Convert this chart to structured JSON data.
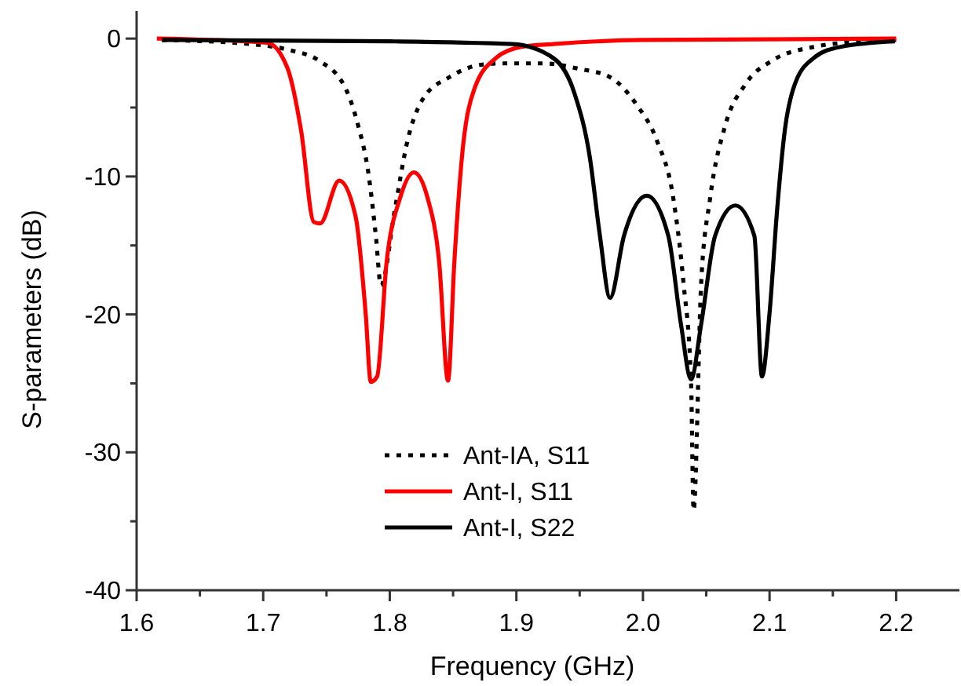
{
  "chart_data": {
    "type": "line",
    "xlabel": "Frequency (GHz)",
    "ylabel": "S-parameters (dB)",
    "xlim": [
      1.6,
      2.25
    ],
    "ylim": [
      -40,
      2
    ],
    "xticks": [
      1.6,
      {
        "value": 1.65,
        "label": null
      },
      1.7,
      {
        "value": 1.75,
        "label": null
      },
      1.8,
      {
        "value": 1.85,
        "label": null
      },
      1.9,
      {
        "value": 1.95,
        "label": null
      },
      {
        "value": 2,
        "label": "2.0"
      },
      {
        "value": 2.05,
        "label": null
      },
      2.1,
      {
        "value": 2.15,
        "label": null
      },
      2.2
    ],
    "yticks": [
      -40,
      {
        "value": -35,
        "label": null
      },
      -30,
      {
        "value": -25,
        "label": null
      },
      -20,
      {
        "value": -15,
        "label": null
      },
      -10,
      {
        "value": -5,
        "label": null
      },
      0
    ],
    "grid": false,
    "legend": "bottom",
    "marker": "none",
    "series": [
      {
        "name": "Ant-IA, S11",
        "color": "#000000",
        "line_style": "dotted",
        "x": [
          1.62,
          1.69,
          1.719,
          1.744,
          1.765,
          1.775,
          1.783,
          1.789,
          1.793,
          1.804,
          1.814,
          1.826,
          1.847,
          1.872,
          1.888,
          1.921,
          1.95,
          1.974,
          1.995,
          2.011,
          2.024,
          2.032,
          2.038,
          2.04,
          2.046,
          2.053,
          2.065,
          2.081,
          2.102,
          2.135,
          2.176,
          2.2
        ],
        "values": [
          -0.1,
          -0.4,
          -0.8,
          -1.6,
          -3.6,
          -6.3,
          -9.7,
          -14.3,
          -17.9,
          -12.4,
          -7.4,
          -4.4,
          -2.8,
          -1.9,
          -1.8,
          -1.8,
          -2.2,
          -2.8,
          -4.8,
          -7.4,
          -11.6,
          -17.7,
          -24.9,
          -34.2,
          -17.7,
          -11.6,
          -6.3,
          -3.3,
          -1.6,
          -0.6,
          -0.2,
          -0.1
        ]
      },
      {
        "name": "Ant-I, S11",
        "color": "#ff0000",
        "line_style": "solid",
        "x": [
          1.616,
          1.703,
          1.719,
          1.73,
          1.74,
          1.745,
          1.76,
          1.773,
          1.781,
          1.785,
          1.79,
          1.7975,
          1.808,
          1.819,
          1.83,
          1.839,
          1.846,
          1.851,
          1.857,
          1.867,
          1.884,
          1.904,
          1.929,
          2.0,
          2.2
        ],
        "values": [
          0,
          -0.3,
          -2.1,
          -6.7,
          -13.3,
          -13.4,
          -10.3,
          -12.9,
          -20,
          -24.9,
          -24.5,
          -16.2,
          -11.6,
          -9.7,
          -11.6,
          -16.2,
          -24.8,
          -16.2,
          -8.6,
          -3.6,
          -1.4,
          -0.6,
          -0.4,
          -0.1,
          0
        ]
      },
      {
        "name": "Ant-I, S22",
        "color": "#000000",
        "line_style": "solid",
        "x": [
          1.62,
          1.8,
          1.897,
          1.929,
          1.946,
          1.958,
          1.966,
          1.974,
          1.985,
          2.003,
          2.02,
          2.03,
          2.038,
          2.046,
          2.057,
          2.073,
          2.088,
          2.094,
          2.1,
          2.106,
          2.112,
          2.12,
          2.135,
          2.156,
          2.199
        ],
        "values": [
          -0.1,
          -0.2,
          -0.4,
          -1.4,
          -4,
          -8.6,
          -14.3,
          -18.8,
          -14.3,
          -11.4,
          -14.3,
          -20.7,
          -24.7,
          -20.7,
          -14.3,
          -12.1,
          -14.3,
          -24.5,
          -19.9,
          -12.4,
          -6.7,
          -3.3,
          -1.4,
          -0.6,
          -0.2
        ]
      }
    ]
  }
}
